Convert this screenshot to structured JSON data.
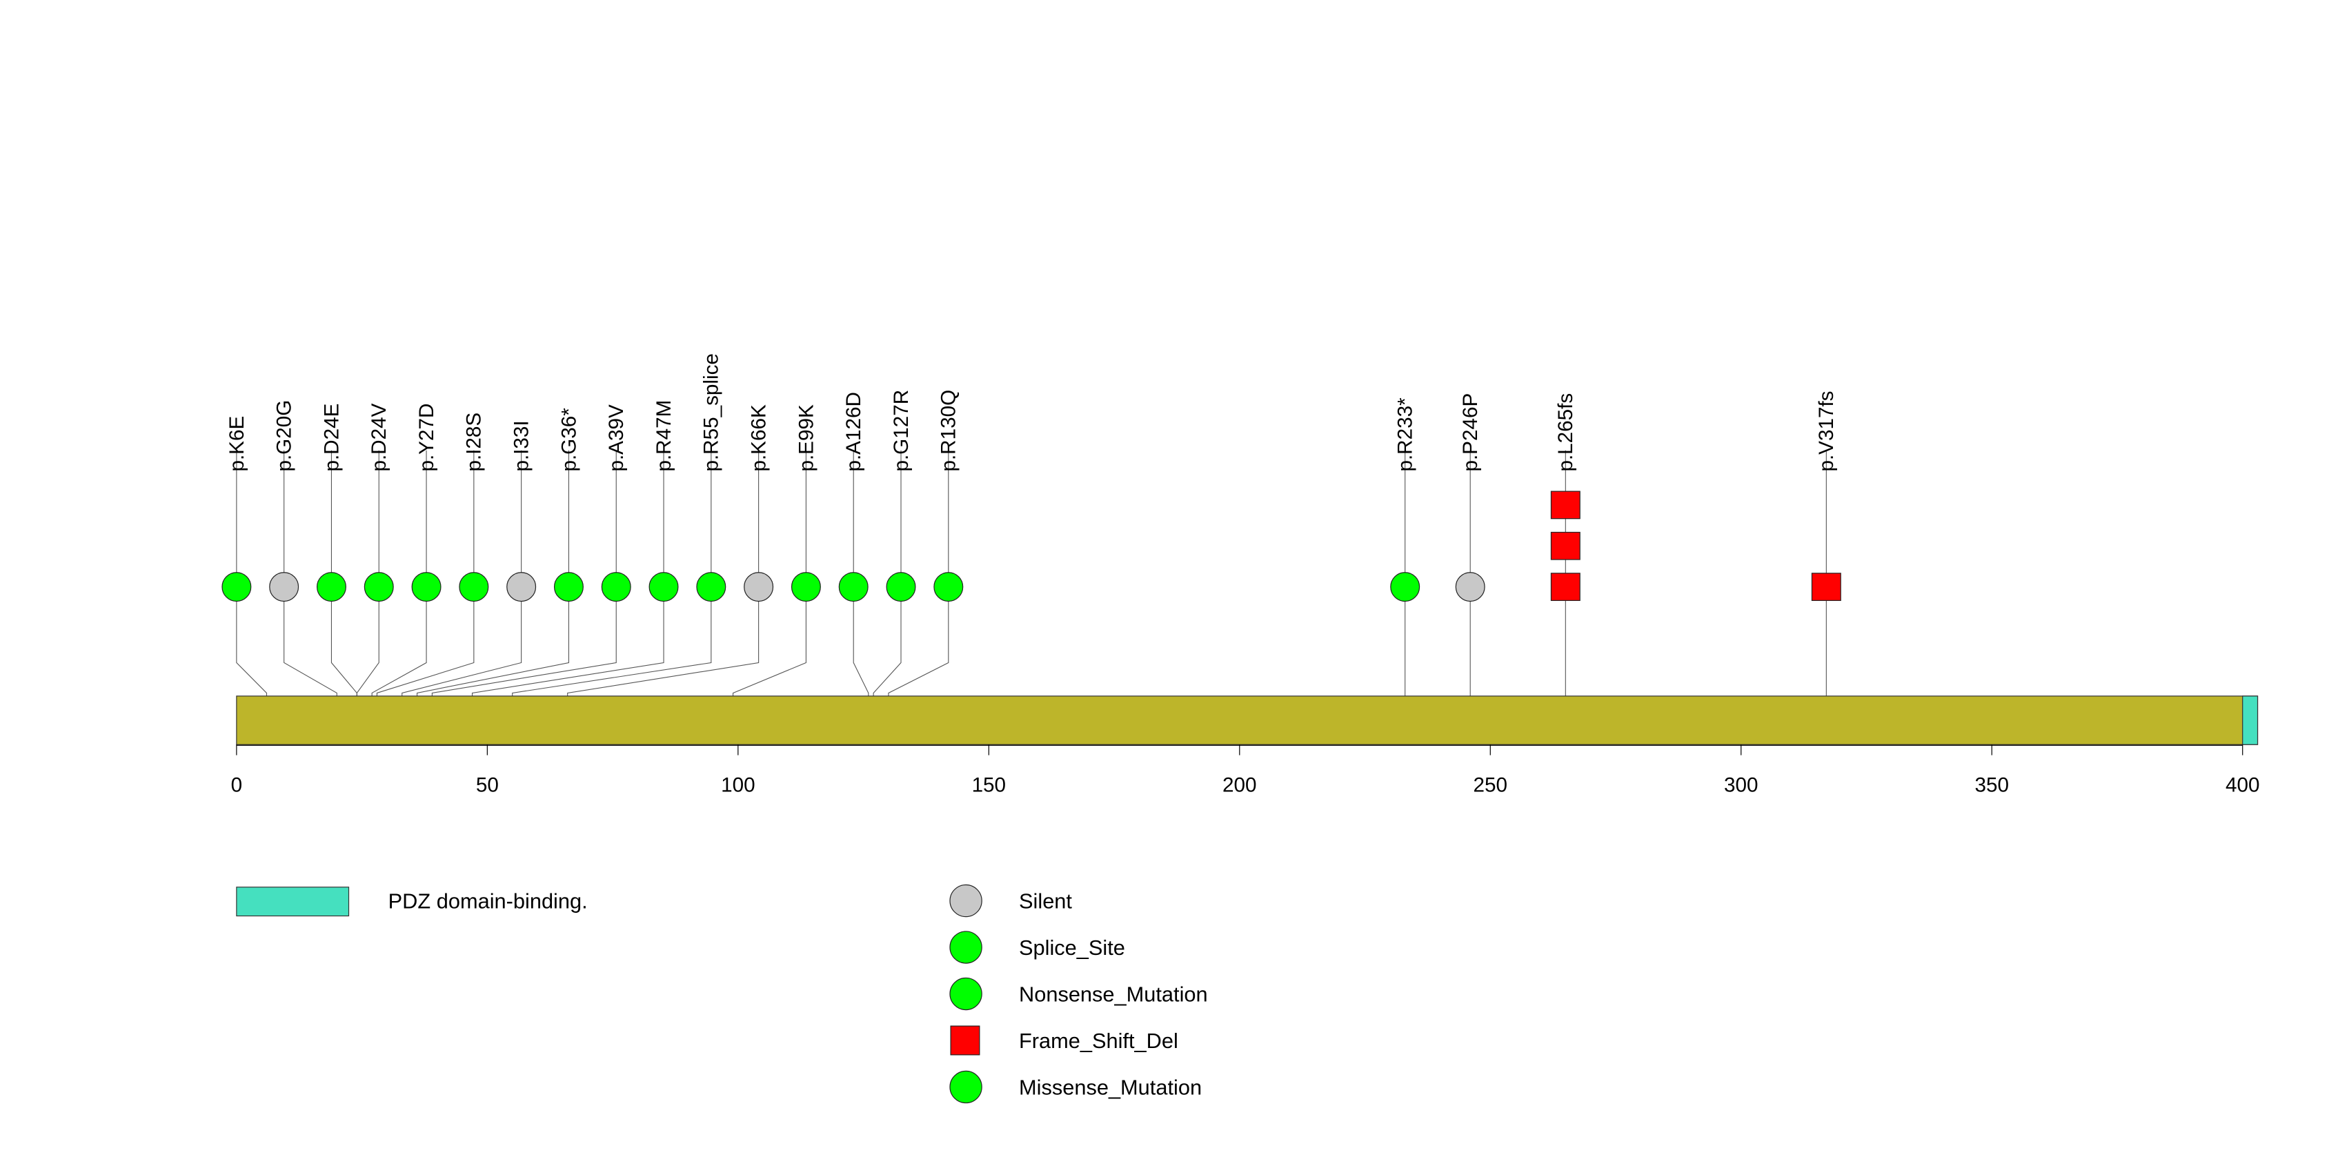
{
  "chart_data": {
    "type": "lollipop",
    "title": "",
    "protein_length": 403,
    "xlim": [
      0,
      403
    ],
    "x_ticks": [
      0,
      50,
      100,
      150,
      200,
      250,
      300,
      350,
      400
    ],
    "backbone_color": "#BDB52A",
    "domains": [
      {
        "name": "PDZ domain-binding.",
        "start": 400,
        "end": 403,
        "color": "#45E0BF"
      }
    ],
    "mutations": [
      {
        "label": "p.K6E",
        "pos": 6,
        "type": "Missense_Mutation",
        "count": 1
      },
      {
        "label": "p.G20G",
        "pos": 20,
        "type": "Silent",
        "count": 1
      },
      {
        "label": "p.D24E",
        "pos": 24,
        "type": "Missense_Mutation",
        "count": 1
      },
      {
        "label": "p.D24V",
        "pos": 24,
        "type": "Missense_Mutation",
        "count": 1
      },
      {
        "label": "p.Y27D",
        "pos": 27,
        "type": "Missense_Mutation",
        "count": 1
      },
      {
        "label": "p.I28S",
        "pos": 28,
        "type": "Missense_Mutation",
        "count": 1
      },
      {
        "label": "p.I33I",
        "pos": 33,
        "type": "Silent",
        "count": 1
      },
      {
        "label": "p.G36*",
        "pos": 36,
        "type": "Nonsense_Mutation",
        "count": 1
      },
      {
        "label": "p.A39V",
        "pos": 39,
        "type": "Missense_Mutation",
        "count": 1
      },
      {
        "label": "p.R47M",
        "pos": 47,
        "type": "Missense_Mutation",
        "count": 1
      },
      {
        "label": "p.R55_splice",
        "pos": 55,
        "type": "Splice_Site",
        "count": 1
      },
      {
        "label": "p.K66K",
        "pos": 66,
        "type": "Silent",
        "count": 1
      },
      {
        "label": "p.E99K",
        "pos": 99,
        "type": "Missense_Mutation",
        "count": 1
      },
      {
        "label": "p.A126D",
        "pos": 126,
        "type": "Missense_Mutation",
        "count": 1
      },
      {
        "label": "p.G127R",
        "pos": 127,
        "type": "Missense_Mutation",
        "count": 1
      },
      {
        "label": "p.R130Q",
        "pos": 130,
        "type": "Missense_Mutation",
        "count": 1
      },
      {
        "label": "p.R233*",
        "pos": 233,
        "type": "Nonsense_Mutation",
        "count": 1
      },
      {
        "label": "p.P246P",
        "pos": 246,
        "type": "Silent",
        "count": 1
      },
      {
        "label": "p.L265fs",
        "pos": 265,
        "type": "Frame_Shift_Del",
        "count": 3
      },
      {
        "label": "p.V317fs",
        "pos": 317,
        "type": "Frame_Shift_Del",
        "count": 1
      }
    ],
    "legend": {
      "domains": [
        {
          "name": "PDZ domain-binding.",
          "color": "#45E0BF"
        }
      ],
      "types": [
        {
          "name": "Silent",
          "shape": "circle",
          "color": "#C8C8C8"
        },
        {
          "name": "Splice_Site",
          "shape": "circle",
          "color": "#00FF00"
        },
        {
          "name": "Nonsense_Mutation",
          "shape": "circle",
          "color": "#00FF00"
        },
        {
          "name": "Frame_Shift_Del",
          "shape": "square",
          "color": "#FF0000"
        },
        {
          "name": "Missense_Mutation",
          "shape": "circle",
          "color": "#00FF00"
        }
      ]
    }
  }
}
